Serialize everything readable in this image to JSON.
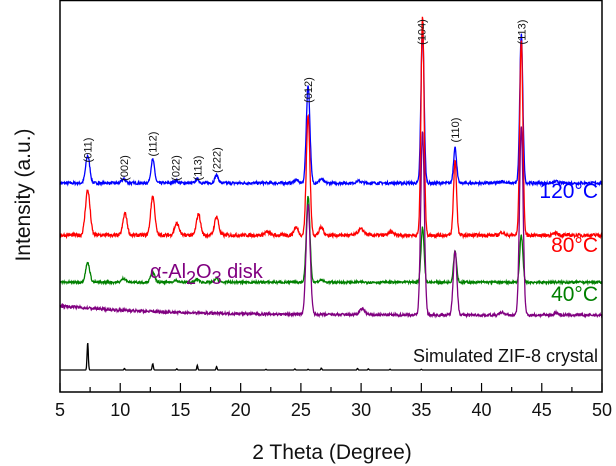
{
  "chart_data": {
    "type": "line",
    "title": "",
    "xlabel": "2 Theta (Degree)",
    "ylabel": "Intensity (a.u.)",
    "xlim": [
      5,
      50
    ],
    "ylim": [
      0,
      100
    ],
    "xticks": [
      5,
      10,
      15,
      20,
      25,
      30,
      35,
      40,
      45,
      50
    ],
    "xtick_labels": [
      "5",
      "10",
      "15",
      "20",
      "25",
      "30",
      "35",
      "40",
      "45",
      "50"
    ],
    "y_ticks_shown": false,
    "grid": false,
    "peak_format": "[2theta, height, fwhm]",
    "series": [
      {
        "name": "120°C",
        "color": "#0000ff",
        "baseline": 53.3,
        "noise": 0.35,
        "peaks": [
          [
            7.3,
            7,
            0.4
          ],
          [
            10.3,
            1,
            0.4
          ],
          [
            12.7,
            6,
            0.35
          ],
          [
            14.6,
            0.6,
            0.4
          ],
          [
            16.4,
            1,
            0.35
          ],
          [
            18.0,
            2,
            0.35
          ],
          [
            24.6,
            0.8,
            0.4
          ],
          [
            25.6,
            25,
            0.35
          ],
          [
            26.7,
            1,
            0.4
          ],
          [
            29.8,
            0.5,
            0.5
          ],
          [
            35.1,
            40,
            0.3
          ],
          [
            37.8,
            9,
            0.3
          ],
          [
            41.7,
            0.5,
            0.4
          ],
          [
            43.3,
            38,
            0.3
          ],
          [
            46.2,
            0.4,
            0.4
          ]
        ]
      },
      {
        "name": "80°C",
        "color": "#ff0000",
        "baseline": 40,
        "noise": 0.45,
        "peaks": [
          [
            7.3,
            11.5,
            0.45
          ],
          [
            10.4,
            5.6,
            0.4
          ],
          [
            12.7,
            10,
            0.4
          ],
          [
            14.7,
            3,
            0.45
          ],
          [
            16.5,
            5.4,
            0.4
          ],
          [
            18.0,
            4.8,
            0.4
          ],
          [
            22.2,
            0.8,
            0.5
          ],
          [
            24.6,
            2,
            0.4
          ],
          [
            25.6,
            30.6,
            0.35
          ],
          [
            26.7,
            2,
            0.4
          ],
          [
            30.0,
            1.5,
            0.6
          ],
          [
            32.5,
            0.8,
            0.5
          ],
          [
            35.1,
            56,
            0.3
          ],
          [
            37.8,
            19,
            0.3
          ],
          [
            41.7,
            0.8,
            0.4
          ],
          [
            43.3,
            50,
            0.3
          ],
          [
            46.2,
            0.6,
            0.4
          ]
        ]
      },
      {
        "name": "40°C",
        "color": "#008000",
        "baseline": 28,
        "noise": 0.3,
        "peaks": [
          [
            7.3,
            5,
            0.4
          ],
          [
            10.3,
            1,
            0.4
          ],
          [
            12.7,
            2.5,
            0.4
          ],
          [
            14.6,
            0.5,
            0.4
          ],
          [
            16.4,
            0.8,
            0.35
          ],
          [
            18.0,
            1,
            0.35
          ],
          [
            25.6,
            22,
            0.35
          ],
          [
            26.7,
            0.6,
            0.4
          ],
          [
            35.1,
            14,
            0.3
          ],
          [
            37.8,
            8,
            0.3
          ],
          [
            43.3,
            12,
            0.3
          ]
        ]
      },
      {
        "name": "α-Al2O3 disk",
        "color": "#800080",
        "baseline": 19.6,
        "baseline_start": 22,
        "noise": 0.35,
        "peaks": [
          [
            25.6,
            28,
            0.4
          ],
          [
            30.1,
            1.5,
            0.5
          ],
          [
            35.1,
            47,
            0.35
          ],
          [
            37.8,
            16.5,
            0.35
          ],
          [
            41.7,
            0.7,
            0.4
          ],
          [
            43.3,
            48,
            0.35
          ],
          [
            46.2,
            0.6,
            0.4
          ]
        ]
      },
      {
        "name": "Simulated ZIF-8 crystal",
        "color": "#000000",
        "baseline": 5.6,
        "noise": 0,
        "peaks": [
          [
            7.3,
            7,
            0.12
          ],
          [
            10.35,
            0.4,
            0.1
          ],
          [
            12.7,
            1.6,
            0.12
          ],
          [
            14.7,
            0.3,
            0.1
          ],
          [
            16.4,
            1.2,
            0.1
          ],
          [
            18.0,
            0.9,
            0.1
          ],
          [
            22.1,
            0.2,
            0.1
          ],
          [
            24.5,
            0.3,
            0.1
          ],
          [
            25.6,
            0.2,
            0.1
          ],
          [
            26.7,
            0.5,
            0.1
          ],
          [
            29.7,
            0.4,
            0.1
          ],
          [
            30.6,
            0.3,
            0.1
          ],
          [
            32.4,
            0.2,
            0.1
          ],
          [
            35.0,
            0.2,
            0.1
          ]
        ]
      }
    ],
    "series_labels": {
      "s120": "120°C",
      "s80": "80°C",
      "s40": "40°C",
      "alumina": {
        "a": "α-Al",
        "sub1": "2",
        "b": "O",
        "sub2": "3",
        "c": " disk"
      },
      "simulated": "Simulated ZIF-8 crystal"
    },
    "annotations": [
      {
        "text": "(011)",
        "x": 7.3
      },
      {
        "text": "(002)",
        "x": 10.3
      },
      {
        "text": "(112)",
        "x": 12.7
      },
      {
        "text": "(022)",
        "x": 14.6
      },
      {
        "text": "(113)",
        "x": 16.4
      },
      {
        "text": "(222)",
        "x": 18.0
      },
      {
        "text": "(012)",
        "x": 25.6
      },
      {
        "text": "(104)",
        "x": 35.0
      },
      {
        "text": "(110)",
        "x": 37.8
      },
      {
        "text": "(113)",
        "x": 43.3
      }
    ]
  }
}
